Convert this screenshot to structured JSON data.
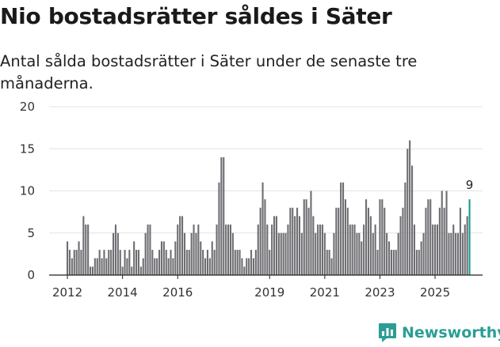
{
  "header": {
    "title": "Nio bostadsrätter såldes i Säter",
    "subtitle": "Antal sålda bostadsrätter i Säter under de senaste tre månaderna."
  },
  "brand": {
    "name": "Newsworthy",
    "icon": "newsworthy-logo-icon"
  },
  "colors": {
    "bar": "#6e6d72",
    "highlight": "#1a9a8e",
    "brand": "#2a9e96"
  },
  "chart_data": {
    "type": "bar",
    "title": "Nio bostadsrätter såldes i Säter",
    "subtitle": "Antal sålda bostadsrätter i Säter under de senaste tre månaderna.",
    "xlabel": "",
    "ylabel": "",
    "ylim": [
      0,
      20
    ],
    "yticks": [
      0,
      5,
      10,
      15,
      20
    ],
    "grid": true,
    "frequency": "monthly, rolling three-month count",
    "start": "2012-01",
    "xticks": [
      "2012",
      "2014",
      "2016",
      "2019",
      "2021",
      "2023",
      "2025"
    ],
    "xtick_month_index": [
      0,
      24,
      48,
      88,
      112,
      136,
      160
    ],
    "values": [
      4,
      3,
      2,
      3,
      3,
      4,
      3,
      7,
      6,
      6,
      1,
      1,
      2,
      2,
      3,
      2,
      3,
      2,
      3,
      3,
      5,
      6,
      5,
      3,
      1,
      3,
      2,
      3,
      1,
      4,
      3,
      3,
      1,
      2,
      5,
      6,
      6,
      3,
      2,
      2,
      3,
      4,
      4,
      3,
      2,
      3,
      2,
      4,
      6,
      7,
      7,
      5,
      3,
      3,
      5,
      6,
      5,
      6,
      4,
      3,
      2,
      3,
      2,
      4,
      3,
      6,
      11,
      14,
      14,
      6,
      6,
      6,
      5,
      3,
      3,
      3,
      2,
      1,
      2,
      2,
      3,
      2,
      3,
      6,
      8,
      11,
      9,
      6,
      3,
      6,
      7,
      7,
      5,
      5,
      5,
      5,
      6,
      8,
      8,
      7,
      8,
      7,
      5,
      9,
      9,
      8,
      10,
      7,
      5,
      6,
      6,
      6,
      5,
      3,
      3,
      2,
      5,
      8,
      8,
      11,
      11,
      9,
      8,
      6,
      6,
      6,
      5,
      5,
      4,
      6,
      9,
      8,
      7,
      5,
      6,
      3,
      9,
      9,
      8,
      5,
      4,
      3,
      3,
      3,
      5,
      7,
      8,
      11,
      15,
      16,
      13,
      6,
      3,
      3,
      4,
      5,
      8,
      9,
      9,
      6,
      6,
      6,
      8,
      10,
      8,
      10,
      5,
      5,
      6,
      5,
      5,
      8,
      5,
      6,
      7,
      9
    ],
    "highlight_last": true,
    "last_value_label": "9"
  }
}
